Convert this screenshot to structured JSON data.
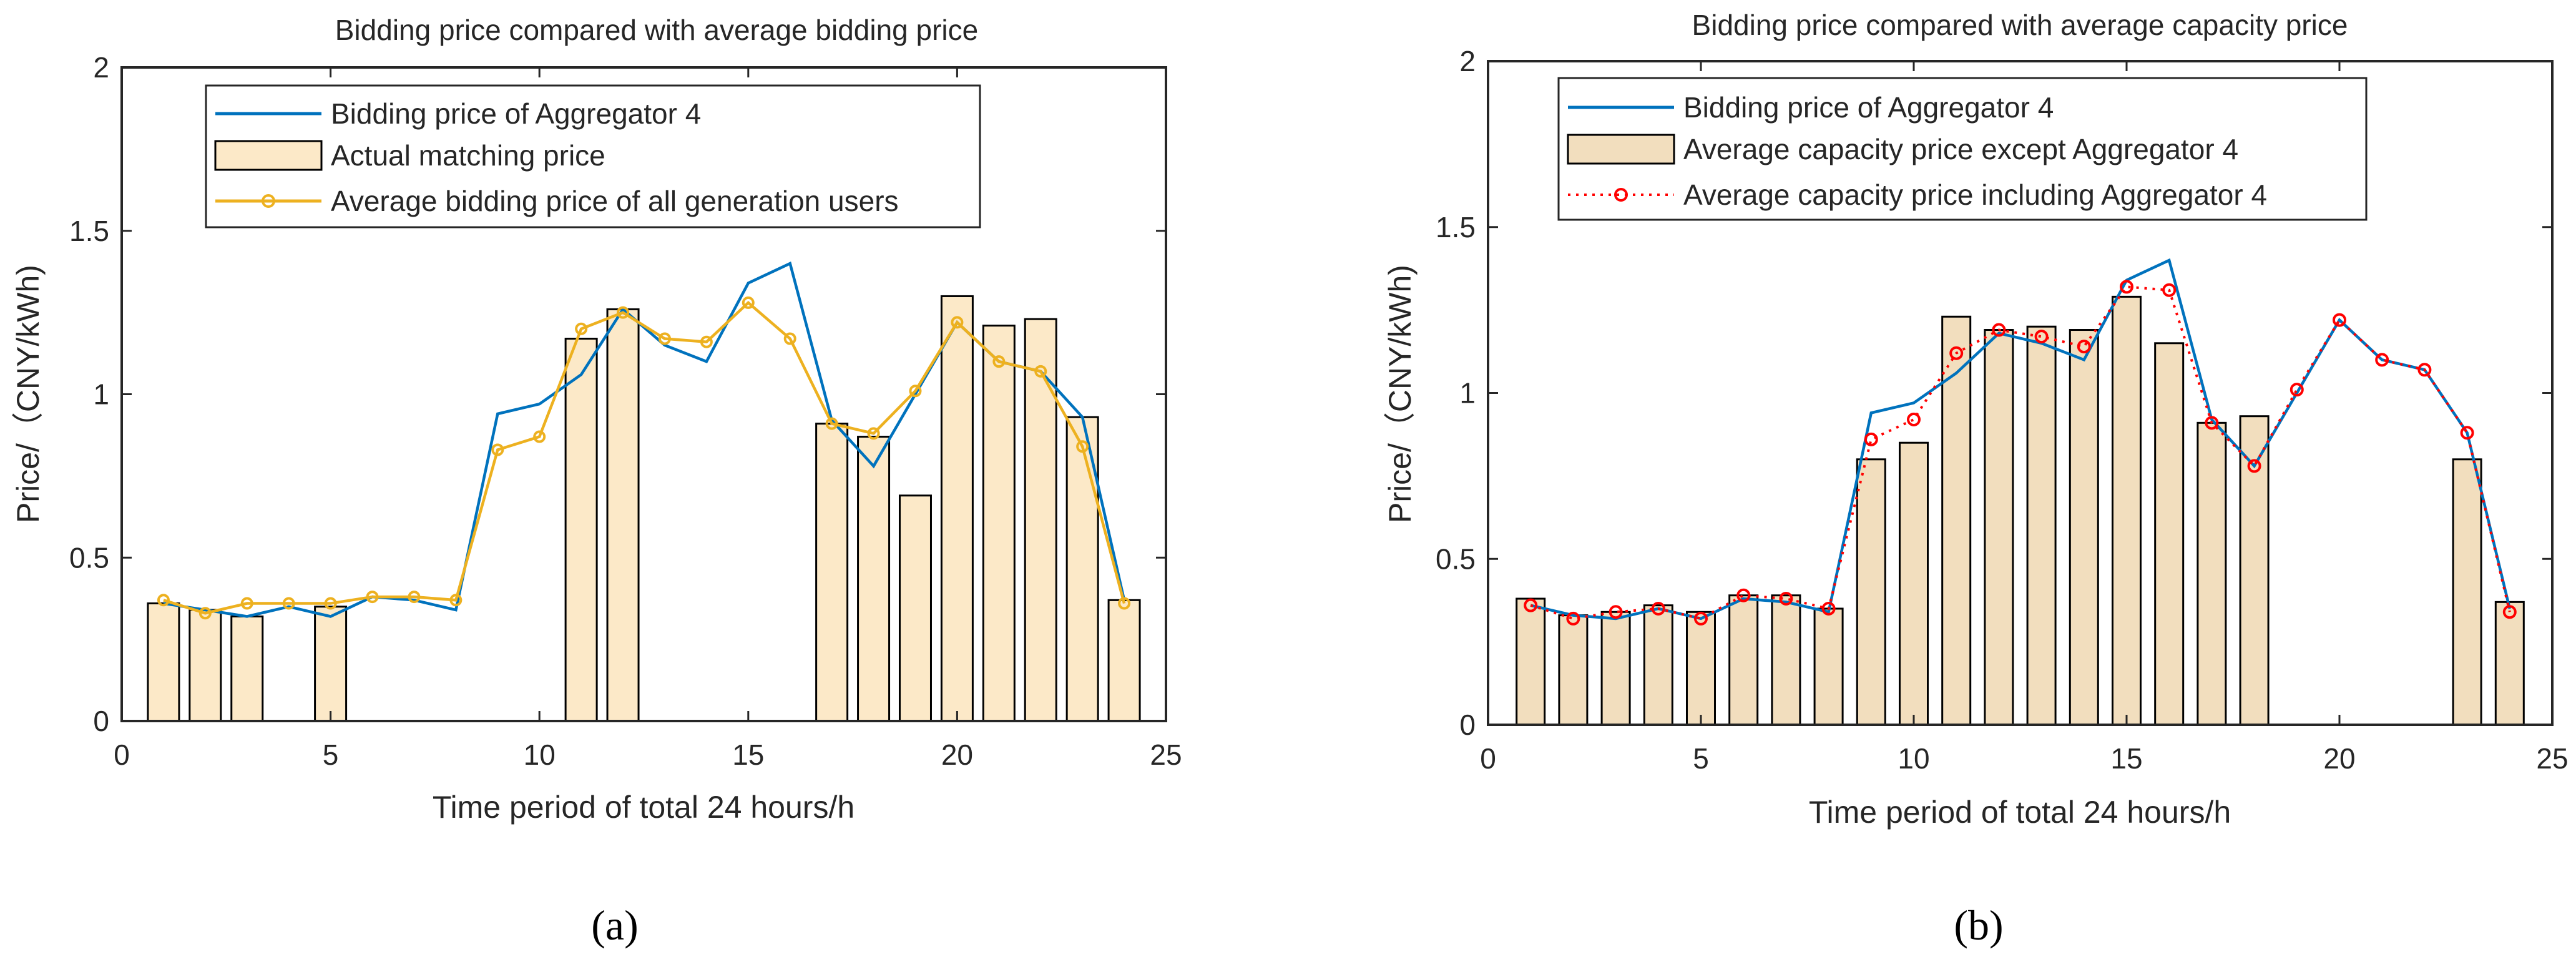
{
  "chart_data": [
    {
      "panel_label": "(a)",
      "type": "bar",
      "title": "Bidding price compared with average bidding price",
      "xlabel": "Time period of total 24 hours/h",
      "ylabel": "Price/（CNY/kWh)",
      "xlim": [
        0,
        25
      ],
      "ylim": [
        0,
        2
      ],
      "xticks": [
        "0",
        "5",
        "10",
        "15",
        "20",
        "25"
      ],
      "yticks": [
        "0",
        "0.5",
        "1",
        "1.5",
        "2"
      ],
      "grid": false,
      "legend_position": "top-left",
      "series": [
        {
          "name": "Bidding price of Aggregator 4",
          "kind": "line",
          "color": "#0072BD",
          "x": [
            1,
            2,
            3,
            4,
            5,
            6,
            7,
            8,
            9,
            10,
            11,
            12,
            13,
            14,
            15,
            16,
            17,
            18,
            19,
            20,
            21,
            22,
            23,
            24
          ],
          "values": [
            0.36,
            0.34,
            0.32,
            0.35,
            0.32,
            0.38,
            0.37,
            0.34,
            0.94,
            0.97,
            1.06,
            1.26,
            1.15,
            1.1,
            1.34,
            1.4,
            0.92,
            0.78,
            1.0,
            1.22,
            1.1,
            1.07,
            0.93,
            0.37
          ]
        },
        {
          "name": "Actual matching price",
          "kind": "bar",
          "color": "#FCE9C8",
          "x": [
            1,
            2,
            3,
            4,
            5,
            6,
            7,
            8,
            9,
            10,
            11,
            12,
            13,
            14,
            15,
            16,
            17,
            18,
            19,
            20,
            21,
            22,
            23,
            24
          ],
          "values": [
            0.36,
            0.34,
            0.32,
            0,
            0.35,
            0,
            0,
            0,
            0,
            0,
            1.17,
            1.26,
            0,
            0,
            0,
            0,
            0.91,
            0.87,
            0.69,
            1.3,
            1.21,
            1.23,
            0.93,
            0.37
          ]
        },
        {
          "name": "Average bidding price of all generation users",
          "kind": "line-marker",
          "color": "#EDB120",
          "x": [
            1,
            2,
            3,
            4,
            5,
            6,
            7,
            8,
            9,
            10,
            11,
            12,
            13,
            14,
            15,
            16,
            17,
            18,
            19,
            20,
            21,
            22,
            23,
            24
          ],
          "values": [
            0.37,
            0.33,
            0.36,
            0.36,
            0.36,
            0.38,
            0.38,
            0.37,
            0.83,
            0.87,
            1.2,
            1.25,
            1.17,
            1.16,
            1.28,
            1.17,
            0.91,
            0.88,
            1.01,
            1.22,
            1.1,
            1.07,
            0.84,
            0.36
          ]
        }
      ]
    },
    {
      "panel_label": "(b)",
      "type": "bar",
      "title": "Bidding price compared with average capacity price",
      "xlabel": "Time period of total 24 hours/h",
      "ylabel": "Price/（CNY/kWh)",
      "xlim": [
        0,
        25
      ],
      "ylim": [
        0,
        2
      ],
      "xticks": [
        "0",
        "5",
        "10",
        "15",
        "20",
        "25"
      ],
      "yticks": [
        "0",
        "0.5",
        "1",
        "1.5",
        "2"
      ],
      "grid": false,
      "legend_position": "top-left",
      "series": [
        {
          "name": "Bidding price of Aggregator 4",
          "kind": "line",
          "color": "#0072BD",
          "x": [
            1,
            2,
            3,
            4,
            5,
            6,
            7,
            8,
            9,
            10,
            11,
            12,
            13,
            14,
            15,
            16,
            17,
            18,
            19,
            20,
            21,
            22,
            23,
            24
          ],
          "values": [
            0.36,
            0.33,
            0.32,
            0.35,
            0.32,
            0.38,
            0.37,
            0.34,
            0.94,
            0.97,
            1.06,
            1.18,
            1.15,
            1.1,
            1.34,
            1.4,
            0.92,
            0.78,
            1.0,
            1.22,
            1.1,
            1.07,
            0.88,
            0.35
          ]
        },
        {
          "name": "Average capacity price except Aggregator 4",
          "kind": "bar",
          "color": "#F2DEBE",
          "x": [
            1,
            2,
            3,
            4,
            5,
            6,
            7,
            8,
            9,
            10,
            11,
            12,
            13,
            14,
            15,
            16,
            17,
            18,
            19,
            20,
            21,
            22,
            23,
            24
          ],
          "values": [
            0.38,
            0.33,
            0.34,
            0.36,
            0.34,
            0.39,
            0.39,
            0.35,
            0.8,
            0.85,
            1.23,
            1.19,
            1.2,
            1.19,
            1.29,
            1.15,
            0.91,
            0.93,
            0,
            0,
            0,
            0,
            0.8,
            0.37
          ]
        },
        {
          "name": "Average capacity price including Aggregator 4",
          "kind": "dotted-marker",
          "color": "#FF0000",
          "x": [
            1,
            2,
            3,
            4,
            5,
            6,
            7,
            8,
            9,
            10,
            11,
            12,
            13,
            14,
            15,
            16,
            17,
            18,
            19,
            20,
            21,
            22,
            23,
            24
          ],
          "values": [
            0.36,
            0.32,
            0.34,
            0.35,
            0.32,
            0.39,
            0.38,
            0.35,
            0.86,
            0.92,
            1.12,
            1.19,
            1.17,
            1.14,
            1.32,
            1.31,
            0.91,
            0.78,
            1.01,
            1.22,
            1.1,
            1.07,
            0.88,
            0.34
          ]
        }
      ]
    }
  ]
}
